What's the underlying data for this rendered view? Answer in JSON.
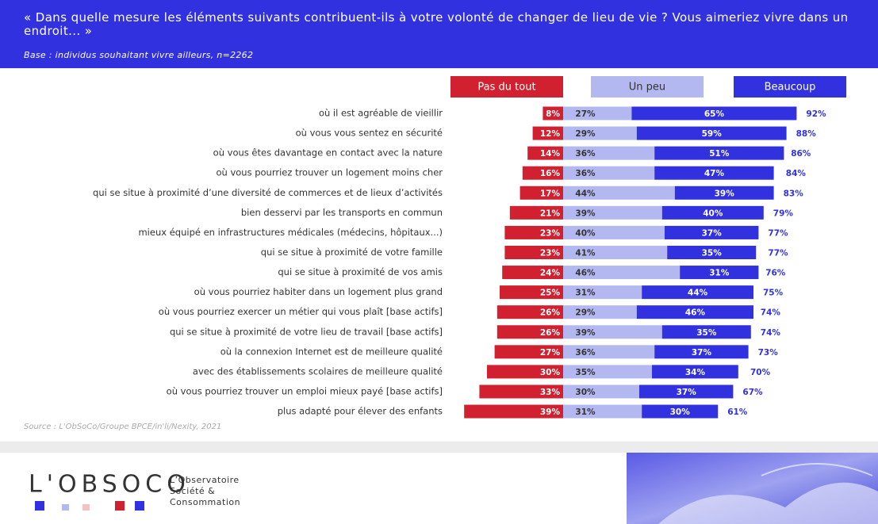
{
  "chart_data": {
    "type": "diverging_bar",
    "title": "« Dans quelle mesure les éléments suivants contribuent-ils à votre volonté de changer de lieu de vie ? Vous aimeriez vivre dans un endroit... »",
    "subtitle": "Base : individus souhaitant vivre ailleurs, n=2262",
    "source": "Source : L'ObSoCo/Groupe BPCE/in'li/Nexity, 2021",
    "categories": [
      "où il est agréable de vieillir",
      "où vous vous sentez en sécurité",
      "où vous êtes davantage en contact avec la nature",
      "où vous pourriez trouver un logement moins cher",
      "qui se situe à proximité d’une diversité de commerces et de lieux d’activités",
      "bien desservi par les transports en commun",
      "mieux équipé en infrastructures médicales (médecins, hôpitaux...)",
      "qui se situe à proximité de votre famille",
      "qui se situe à proximité de vos amis",
      "où vous pourriez habiter dans un logement plus grand",
      "où vous pourriez exercer un métier qui vous plaît [base actifs]",
      "qui se situe à proximité de votre lieu de travail [base actifs]",
      "où la connexion Internet est de meilleure qualité",
      "avec des établissements scolaires de meilleure qualité",
      "où vous pourriez trouver un emploi mieux payé [base actifs]",
      "plus adapté pour élever des enfants"
    ],
    "series": [
      {
        "name": "Pas du tout",
        "color": "#d1202f",
        "values": [
          8,
          12,
          14,
          16,
          17,
          21,
          23,
          23,
          24,
          25,
          26,
          26,
          27,
          30,
          33,
          39
        ],
        "value_labels": [
          "8%",
          "12%",
          "14%",
          "16%",
          "17%",
          "21%",
          "23%",
          "23%",
          "24%",
          "25%",
          "26%",
          "26%",
          "27%",
          "30%",
          "33%",
          "39%"
        ]
      },
      {
        "name": "Un peu",
        "color": "#b4b8f1",
        "values": [
          27,
          29,
          36,
          36,
          44,
          39,
          40,
          41,
          46,
          31,
          29,
          39,
          36,
          35,
          30,
          31
        ],
        "value_labels": [
          "27%",
          "29%",
          "36%",
          "36%",
          "44%",
          "39%",
          "40%",
          "41%",
          "46%",
          "31%",
          "29%",
          "39%",
          "36%",
          "35%",
          "30%",
          "31%"
        ]
      },
      {
        "name": "Beaucoup",
        "color": "#3131e0",
        "values": [
          65,
          59,
          51,
          47,
          39,
          40,
          37,
          35,
          31,
          44,
          46,
          35,
          37,
          34,
          37,
          30
        ],
        "value_labels": [
          "65%",
          "59%",
          "51%",
          "47%",
          "39%",
          "40%",
          "37%",
          "35%",
          "31%",
          "44%",
          "46%",
          "35%",
          "37%",
          "34%",
          "37%",
          "30%"
        ]
      }
    ],
    "totals": {
      "values": [
        92,
        88,
        86,
        84,
        83,
        79,
        77,
        77,
        76,
        75,
        74,
        74,
        73,
        70,
        67,
        61
      ],
      "value_labels": [
        "92%",
        "88%",
        "86%",
        "84%",
        "83%",
        "79%",
        "77%",
        "77%",
        "76%",
        "75%",
        "74%",
        "74%",
        "73%",
        "70%",
        "67%",
        "61%"
      ]
    }
  },
  "footer": {
    "logo": "L'OBSOCO",
    "org_lines": [
      "L’Observatoire",
      "Société &",
      "Consommation"
    ]
  }
}
